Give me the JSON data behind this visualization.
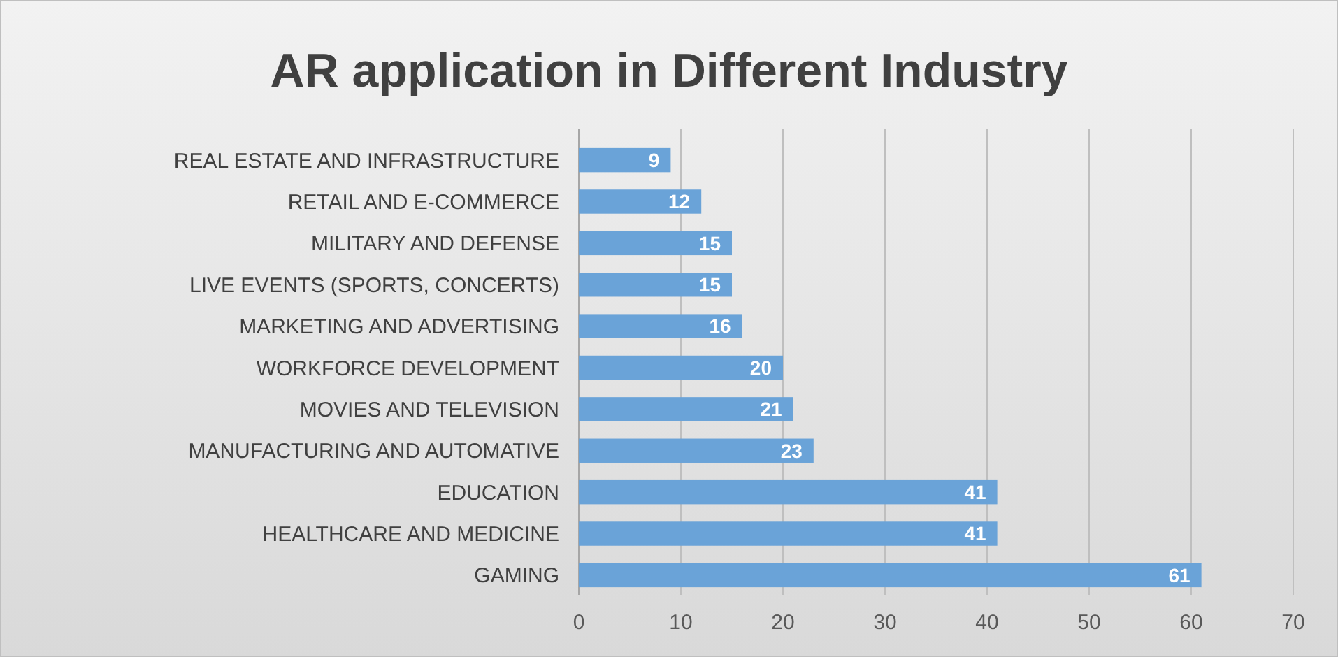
{
  "chart_data": {
    "type": "bar",
    "orientation": "horizontal",
    "title": "AR application in Different Industry",
    "categories": [
      "REAL ESTATE AND INFRASTRUCTURE",
      "RETAIL AND E-COMMERCE",
      "MILITARY AND DEFENSE",
      "LIVE EVENTS (SPORTS, CONCERTS)",
      "MARKETING AND ADVERTISING",
      "WORKFORCE DEVELOPMENT",
      "MOVIES AND TELEVISION",
      "MANUFACTURING AND AUTOMATIVE",
      "EDUCATION",
      "HEALTHCARE AND MEDICINE",
      "GAMING"
    ],
    "values": [
      9,
      12,
      15,
      15,
      16,
      20,
      21,
      23,
      41,
      41,
      61
    ],
    "color": "#6aa3d8",
    "xlim": [
      0,
      70
    ],
    "xticks": [
      0,
      10,
      20,
      30,
      40,
      50,
      60,
      70
    ],
    "grid": "x",
    "data_labels": true
  }
}
